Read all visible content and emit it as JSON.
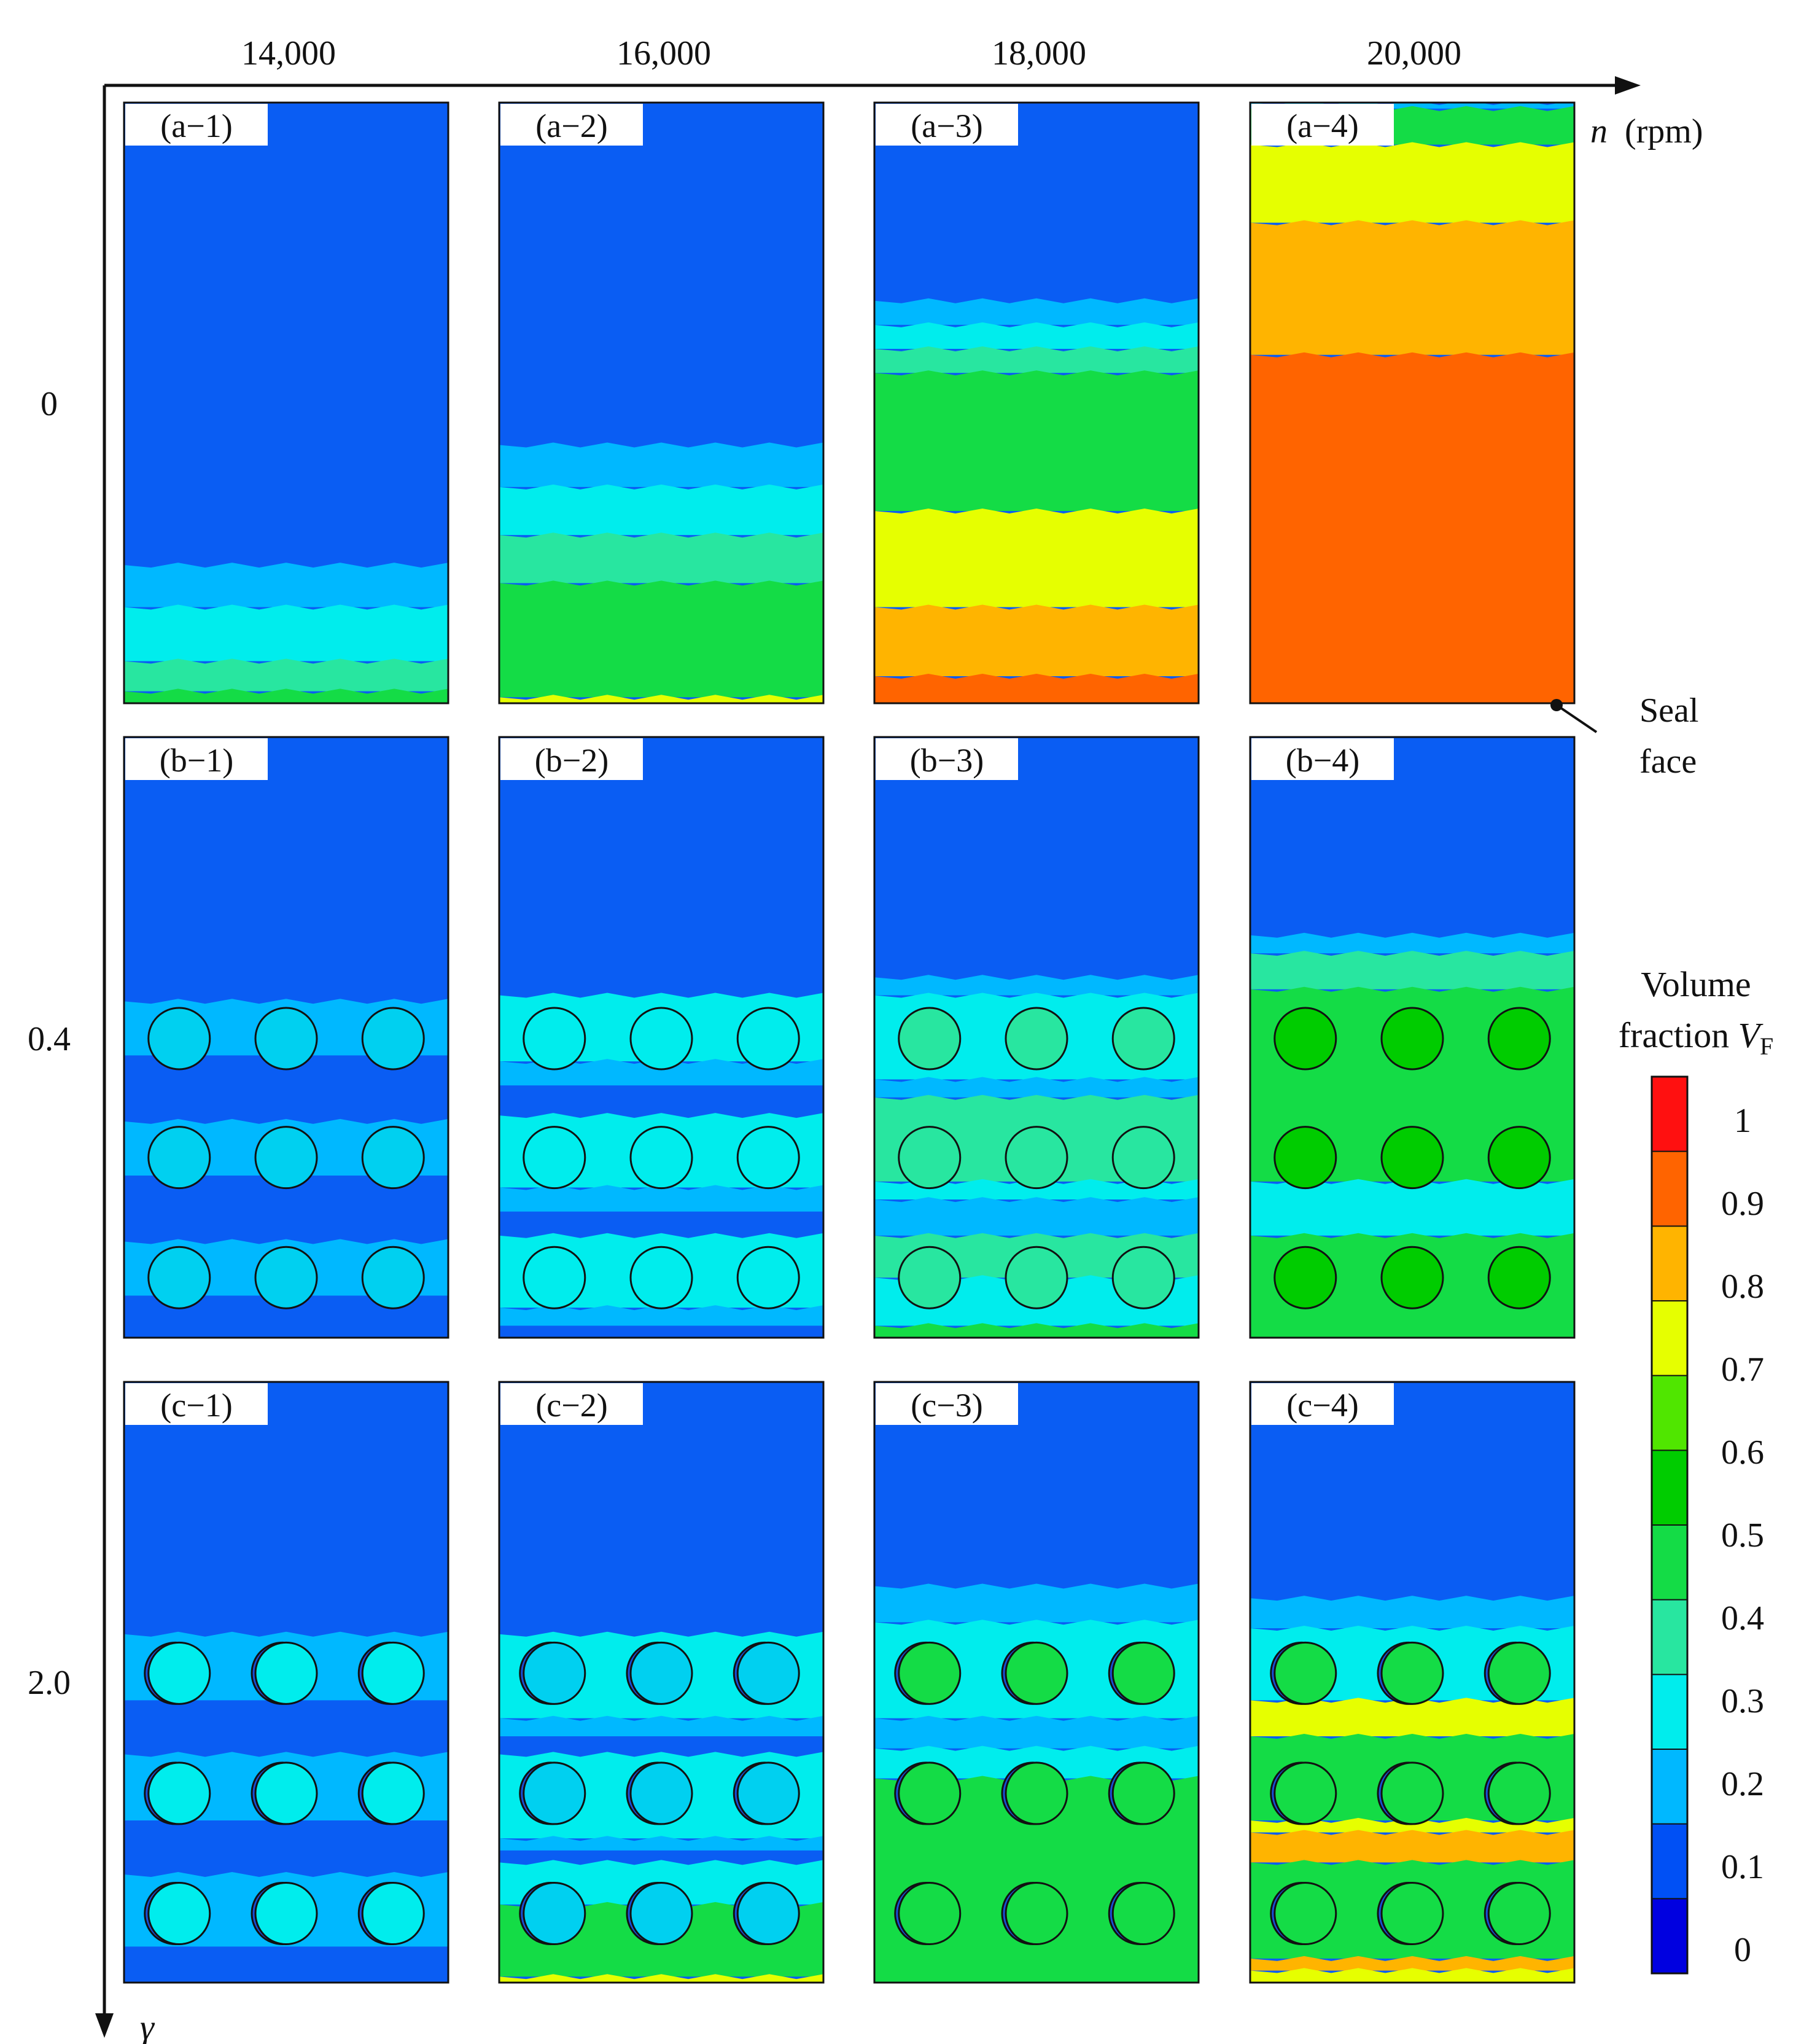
{
  "x_axis": {
    "label_var": "n",
    "label_unit": "(rpm)",
    "ticks": [
      "14,000",
      "16,000",
      "18,000",
      "20,000"
    ]
  },
  "y_axis": {
    "label_var": "γ",
    "ticks": [
      "0",
      "0.4",
      "2.0"
    ]
  },
  "annotation": {
    "line1": "Seal",
    "line2": "face"
  },
  "colorbar": {
    "title_line1": "Volume",
    "title_line2_text": "fraction ",
    "title_var": "V",
    "title_sub": "F",
    "labels": [
      "1",
      "0.9",
      "0.8",
      "0.7",
      "0.6",
      "0.5",
      "0.4",
      "0.3",
      "0.2",
      "0.1",
      "0"
    ],
    "colors": [
      "#0000e0",
      "#0050f5",
      "#00b8ff",
      "#00eded",
      "#28e6a0",
      "#14dc46",
      "#00cc00",
      "#50e600",
      "#e6ff00",
      "#ffb400",
      "#ff6400",
      "#ff1010"
    ]
  },
  "colors": {
    "background_blue": "#0a5df3",
    "circle_stroke": "#111111"
  },
  "panels": [
    {
      "label": "(a−1)",
      "row": 0,
      "col": 0,
      "circles": false,
      "bands": [
        {
          "y0": 0.77,
          "y1": 0.84,
          "c": "#00b8ff"
        },
        {
          "y0": 0.84,
          "y1": 0.93,
          "c": "#00eded"
        },
        {
          "y0": 0.93,
          "y1": 0.98,
          "c": "#28e6a0"
        },
        {
          "y0": 0.98,
          "y1": 1,
          "c": "#14dc46"
        }
      ]
    },
    {
      "label": "(a−2)",
      "row": 0,
      "col": 1,
      "circles": false,
      "bands": [
        {
          "y0": 0.57,
          "y1": 0.64,
          "c": "#00b8ff"
        },
        {
          "y0": 0.64,
          "y1": 0.72,
          "c": "#00eded"
        },
        {
          "y0": 0.72,
          "y1": 0.8,
          "c": "#28e6a0"
        },
        {
          "y0": 0.8,
          "y1": 0.99,
          "c": "#14dc46"
        },
        {
          "y0": 0.99,
          "y1": 1,
          "c": "#e6ff00"
        }
      ]
    },
    {
      "label": "(a−3)",
      "row": 0,
      "col": 2,
      "circles": false,
      "bands": [
        {
          "y0": 0.33,
          "y1": 0.37,
          "c": "#00b8ff"
        },
        {
          "y0": 0.37,
          "y1": 0.41,
          "c": "#00eded"
        },
        {
          "y0": 0.41,
          "y1": 0.45,
          "c": "#28e6a0"
        },
        {
          "y0": 0.45,
          "y1": 0.68,
          "c": "#14dc46"
        },
        {
          "y0": 0.68,
          "y1": 0.84,
          "c": "#e6ff00"
        },
        {
          "y0": 0.84,
          "y1": 0.955,
          "c": "#ffb400"
        },
        {
          "y0": 0.955,
          "y1": 1,
          "c": "#ff6400"
        }
      ]
    },
    {
      "label": "(a−4)",
      "row": 0,
      "col": 3,
      "circles": false,
      "bands": [
        {
          "y0": 0,
          "y1": 0.01,
          "c": "#00b8ff"
        },
        {
          "y0": 0.01,
          "y1": 0.07,
          "c": "#14dc46"
        },
        {
          "y0": 0.07,
          "y1": 0.2,
          "c": "#e6ff00"
        },
        {
          "y0": 0.2,
          "y1": 0.42,
          "c": "#ffb400"
        },
        {
          "y0": 0.42,
          "y1": 1,
          "c": "#ff6400"
        }
      ]
    },
    {
      "label": "(b−1)",
      "row": 1,
      "col": 0,
      "circles": true,
      "fill": "#00d0f0",
      "bands": [
        {
          "y0": 0.44,
          "y1": 0.53,
          "c": "#00b8ff"
        },
        {
          "y0": 0.64,
          "y1": 0.73,
          "c": "#00b8ff"
        },
        {
          "y0": 0.84,
          "y1": 0.93,
          "c": "#00b8ff"
        }
      ]
    },
    {
      "label": "(b−2)",
      "row": 1,
      "col": 1,
      "circles": true,
      "fill": "#00eded",
      "bands": [
        {
          "y0": 0.43,
          "y1": 0.54,
          "c": "#00eded"
        },
        {
          "y0": 0.54,
          "y1": 0.58,
          "c": "#00b8ff"
        },
        {
          "y0": 0.63,
          "y1": 0.75,
          "c": "#00eded"
        },
        {
          "y0": 0.75,
          "y1": 0.79,
          "c": "#00b8ff"
        },
        {
          "y0": 0.83,
          "y1": 0.95,
          "c": "#00eded"
        },
        {
          "y0": 0.95,
          "y1": 0.98,
          "c": "#00b8ff"
        }
      ]
    },
    {
      "label": "(b−3)",
      "row": 1,
      "col": 2,
      "circles": true,
      "fill": "#28e6a0",
      "bands": [
        {
          "y0": 0.4,
          "y1": 0.43,
          "c": "#00b8ff"
        },
        {
          "y0": 0.43,
          "y1": 0.57,
          "c": "#00eded"
        },
        {
          "y0": 0.57,
          "y1": 0.6,
          "c": "#00b8ff"
        },
        {
          "y0": 0.6,
          "y1": 0.74,
          "c": "#28e6a0"
        },
        {
          "y0": 0.74,
          "y1": 0.77,
          "c": "#00eded"
        },
        {
          "y0": 0.77,
          "y1": 0.83,
          "c": "#00b8ff"
        },
        {
          "y0": 0.83,
          "y1": 0.9,
          "c": "#28e6a0"
        },
        {
          "y0": 0.9,
          "y1": 0.98,
          "c": "#00eded"
        },
        {
          "y0": 0.98,
          "y1": 1,
          "c": "#14dc46"
        }
      ]
    },
    {
      "label": "(b−4)",
      "row": 1,
      "col": 3,
      "circles": true,
      "fill": "#00cc00",
      "bands": [
        {
          "y0": 0.33,
          "y1": 0.36,
          "c": "#00b8ff"
        },
        {
          "y0": 0.36,
          "y1": 0.42,
          "c": "#28e6a0"
        },
        {
          "y0": 0.42,
          "y1": 0.74,
          "c": "#14dc46"
        },
        {
          "y0": 0.74,
          "y1": 0.83,
          "c": "#00eded"
        },
        {
          "y0": 0.83,
          "y1": 1,
          "c": "#14dc46"
        }
      ]
    },
    {
      "label": "(c−1)",
      "row": 2,
      "col": 0,
      "circles": true,
      "fill": "#00eded",
      "bands": [
        {
          "y0": 0.42,
          "y1": 0.53,
          "c": "#00b8ff"
        },
        {
          "y0": 0.62,
          "y1": 0.73,
          "c": "#00b8ff"
        },
        {
          "y0": 0.82,
          "y1": 0.94,
          "c": "#00b8ff"
        }
      ]
    },
    {
      "label": "(c−2)",
      "row": 2,
      "col": 1,
      "circles": true,
      "fill": "#00d0f0",
      "bands": [
        {
          "y0": 0.42,
          "y1": 0.56,
          "c": "#00eded"
        },
        {
          "y0": 0.56,
          "y1": 0.59,
          "c": "#00b8ff"
        },
        {
          "y0": 0.62,
          "y1": 0.76,
          "c": "#00eded"
        },
        {
          "y0": 0.76,
          "y1": 0.78,
          "c": "#00b8ff"
        },
        {
          "y0": 0.8,
          "y1": 0.87,
          "c": "#00eded"
        },
        {
          "y0": 0.87,
          "y1": 0.99,
          "c": "#14dc46"
        },
        {
          "y0": 0.99,
          "y1": 1,
          "c": "#e6ff00"
        }
      ]
    },
    {
      "label": "(c−3)",
      "row": 2,
      "col": 2,
      "circles": true,
      "fill": "#14dc46",
      "bands": [
        {
          "y0": 0.34,
          "y1": 0.4,
          "c": "#00b8ff"
        },
        {
          "y0": 0.4,
          "y1": 0.56,
          "c": "#00eded"
        },
        {
          "y0": 0.56,
          "y1": 0.61,
          "c": "#00b8ff"
        },
        {
          "y0": 0.61,
          "y1": 0.66,
          "c": "#00eded"
        },
        {
          "y0": 0.66,
          "y1": 1,
          "c": "#14dc46"
        }
      ]
    },
    {
      "label": "(c−4)",
      "row": 2,
      "col": 3,
      "circles": true,
      "fill": "#14dc46",
      "bands": [
        {
          "y0": 0.36,
          "y1": 0.41,
          "c": "#00b8ff"
        },
        {
          "y0": 0.41,
          "y1": 0.53,
          "c": "#00eded"
        },
        {
          "y0": 0.53,
          "y1": 0.59,
          "c": "#e6ff00"
        },
        {
          "y0": 0.59,
          "y1": 0.73,
          "c": "#14dc46"
        },
        {
          "y0": 0.73,
          "y1": 0.75,
          "c": "#e6ff00"
        },
        {
          "y0": 0.75,
          "y1": 0.8,
          "c": "#ffb400"
        },
        {
          "y0": 0.8,
          "y1": 0.96,
          "c": "#14dc46"
        },
        {
          "y0": 0.96,
          "y1": 0.98,
          "c": "#ffb400"
        },
        {
          "y0": 0.98,
          "y1": 1,
          "c": "#e6ff00"
        }
      ]
    }
  ]
}
